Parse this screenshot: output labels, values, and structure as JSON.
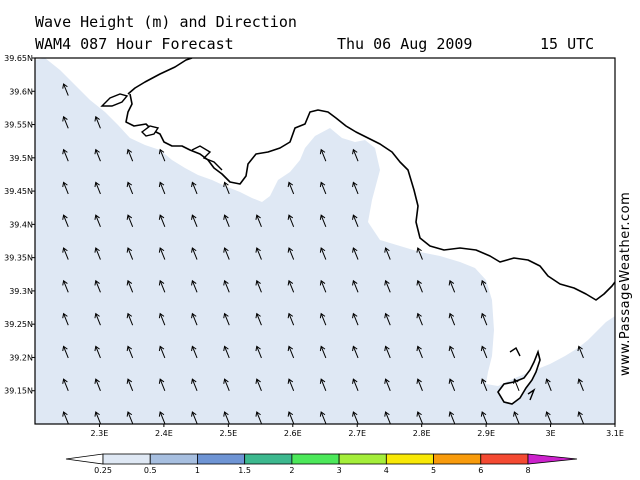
{
  "header": {
    "title": "Wave Height (m) and Direction",
    "model": "WAM4 087 Hour Forecast",
    "date": "Thu 06 Aug 2009",
    "time": "15 UTC"
  },
  "brand": "www.PassageWeather.com",
  "map": {
    "lon_range": [
      2.2,
      3.1
    ],
    "lat_range": [
      39.1,
      39.65
    ],
    "x_ticks": [
      "2.3E",
      "2.4E",
      "2.5E",
      "2.6E",
      "2.7E",
      "2.8E",
      "2.9E",
      "3E",
      "3.1E"
    ],
    "y_ticks": [
      "39.65N",
      "39.6N",
      "39.55N",
      "39.5N",
      "39.45N",
      "39.4N",
      "39.35N",
      "39.3N",
      "39.25N",
      "39.2N",
      "39.15N"
    ],
    "sea_color": "#dfe8f4",
    "land_color": "#ffffff",
    "coast_color": "#000000",
    "arrow_direction": "north-northwest",
    "wave_height_band": "0.25-0.5"
  },
  "colorbar": {
    "labels": [
      "0.25",
      "0.5",
      "1",
      "1.5",
      "2",
      "3",
      "4",
      "5",
      "6",
      "8"
    ],
    "colors": [
      "#ffffff",
      "#dfe8f4",
      "#a7bfe0",
      "#6e94d4",
      "#3cb88e",
      "#4ce85a",
      "#a4ee3a",
      "#f8e806",
      "#f89b0c",
      "#f44a32",
      "#cc0a0a",
      "#cc22cc"
    ]
  }
}
